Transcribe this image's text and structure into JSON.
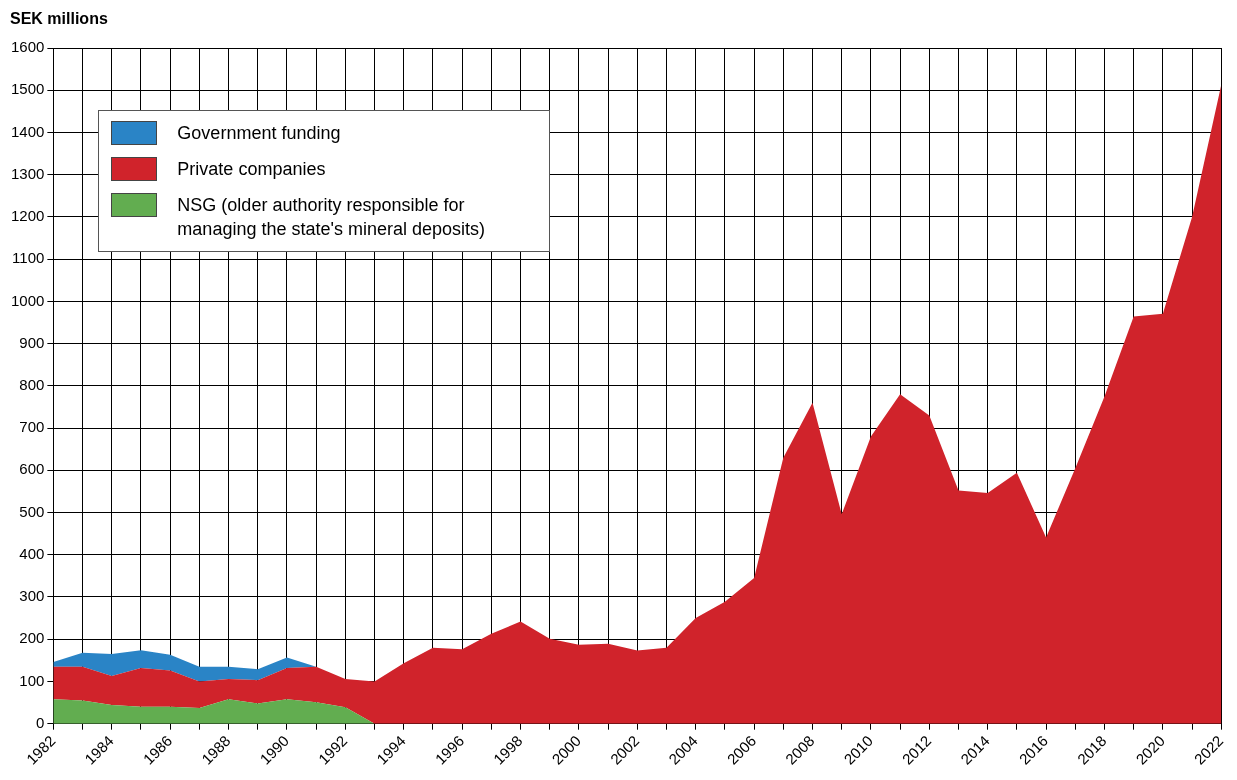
{
  "chart_data": {
    "type": "area",
    "ylabel": "SEK millions",
    "categories": [
      "1982",
      null,
      "1984",
      null,
      "1986",
      null,
      "1988",
      null,
      "1990",
      null,
      "1992",
      null,
      "1994",
      null,
      "1996",
      null,
      "1998",
      null,
      "2000",
      null,
      "2002",
      null,
      "2004",
      null,
      "2006",
      null,
      "2008",
      null,
      "2010",
      null,
      "2012",
      null,
      "2014",
      null,
      "2016",
      null,
      "2018",
      null,
      "2020",
      null,
      "2022"
    ],
    "series": [
      {
        "name": "NSG (older authority responsible for managing the state's mineral deposits)",
        "color": "#62ad50",
        "values": [
          58,
          55,
          44,
          40,
          40,
          37,
          58,
          48,
          58,
          51,
          39,
          0,
          0,
          0,
          0,
          0,
          0,
          0,
          0,
          0,
          0,
          0,
          0,
          0,
          0,
          0,
          0,
          0,
          0,
          0,
          0,
          0,
          0,
          0,
          0,
          0,
          0,
          0,
          0,
          0,
          0
        ]
      },
      {
        "name": "Private companies",
        "color": "#d0232b",
        "values": [
          77,
          80,
          69,
          92,
          86,
          63,
          48,
          55,
          74,
          84,
          67,
          100,
          143,
          180,
          176,
          213,
          242,
          201,
          187,
          189,
          173,
          180,
          250,
          289,
          345,
          630,
          760,
          496,
          680,
          780,
          730,
          552,
          546,
          594,
          441,
          605,
          775,
          964,
          971,
          1200,
          1513
        ]
      },
      {
        "name": "Government funding",
        "color": "#2a84c6",
        "values": [
          11,
          33,
          52,
          42,
          37,
          35,
          29,
          26,
          25,
          0,
          0,
          0,
          0,
          0,
          0,
          0,
          0,
          0,
          0,
          0,
          0,
          0,
          0,
          0,
          0,
          0,
          0,
          0,
          0,
          0,
          0,
          0,
          0,
          0,
          0,
          0,
          0,
          0,
          0,
          0,
          0
        ]
      }
    ],
    "stacked": true,
    "ylim": [
      0,
      1600
    ],
    "yticks": [
      0,
      100,
      200,
      300,
      400,
      500,
      600,
      700,
      800,
      900,
      1000,
      1100,
      1200,
      1300,
      1400,
      1500,
      1600
    ],
    "grid": true,
    "legend": "top left"
  }
}
